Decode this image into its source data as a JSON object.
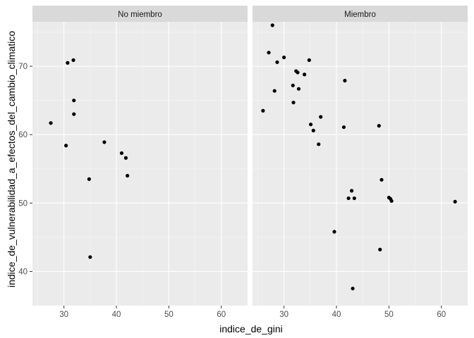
{
  "chart_data": {
    "type": "scatter",
    "facet_by": "membership",
    "xlabel": "indice_de_gini",
    "ylabel": "indice_de_vulnerabilidad_a_efectos_del_cambio_climatico",
    "xlim": [
      24,
      65
    ],
    "ylim": [
      35,
      76.5
    ],
    "xticks": [
      30,
      40,
      50,
      60
    ],
    "yticks": [
      40,
      50,
      60,
      70
    ],
    "grid": true,
    "legend": "none",
    "colors": {
      "panel_background": "#ebebeb",
      "strip_background": "#d9d9d9",
      "grid_major": "#ffffff",
      "point": "#000000"
    },
    "panels": [
      {
        "label": "No miembro",
        "points": [
          {
            "x": 27.5,
            "y": 61.7
          },
          {
            "x": 30.4,
            "y": 58.4
          },
          {
            "x": 30.7,
            "y": 70.5
          },
          {
            "x": 31.8,
            "y": 70.9
          },
          {
            "x": 31.9,
            "y": 65.0
          },
          {
            "x": 31.9,
            "y": 63.0
          },
          {
            "x": 34.8,
            "y": 53.5
          },
          {
            "x": 35.0,
            "y": 42.1
          },
          {
            "x": 37.7,
            "y": 58.9
          },
          {
            "x": 41.0,
            "y": 57.3
          },
          {
            "x": 41.8,
            "y": 56.6
          },
          {
            "x": 42.1,
            "y": 54.0
          }
        ]
      },
      {
        "label": "Miembro",
        "points": [
          {
            "x": 26.0,
            "y": 63.5
          },
          {
            "x": 27.1,
            "y": 72.0
          },
          {
            "x": 27.8,
            "y": 76.0
          },
          {
            "x": 28.2,
            "y": 66.4
          },
          {
            "x": 28.7,
            "y": 70.6
          },
          {
            "x": 30.0,
            "y": 71.3
          },
          {
            "x": 31.7,
            "y": 67.2
          },
          {
            "x": 31.8,
            "y": 64.7
          },
          {
            "x": 32.3,
            "y": 69.3
          },
          {
            "x": 32.6,
            "y": 69.1
          },
          {
            "x": 32.8,
            "y": 66.7
          },
          {
            "x": 33.9,
            "y": 68.8
          },
          {
            "x": 34.8,
            "y": 70.9
          },
          {
            "x": 35.1,
            "y": 61.5
          },
          {
            "x": 35.6,
            "y": 60.6
          },
          {
            "x": 36.6,
            "y": 58.6
          },
          {
            "x": 37.0,
            "y": 62.6
          },
          {
            "x": 39.6,
            "y": 45.8
          },
          {
            "x": 41.4,
            "y": 61.1
          },
          {
            "x": 41.6,
            "y": 67.9
          },
          {
            "x": 42.3,
            "y": 50.7
          },
          {
            "x": 42.9,
            "y": 51.8
          },
          {
            "x": 43.1,
            "y": 37.5
          },
          {
            "x": 43.4,
            "y": 50.7
          },
          {
            "x": 48.1,
            "y": 61.3
          },
          {
            "x": 48.3,
            "y": 43.2
          },
          {
            "x": 48.6,
            "y": 53.4
          },
          {
            "x": 50.0,
            "y": 50.8
          },
          {
            "x": 50.3,
            "y": 50.6
          },
          {
            "x": 50.5,
            "y": 50.3
          },
          {
            "x": 62.6,
            "y": 50.2
          }
        ]
      }
    ]
  }
}
